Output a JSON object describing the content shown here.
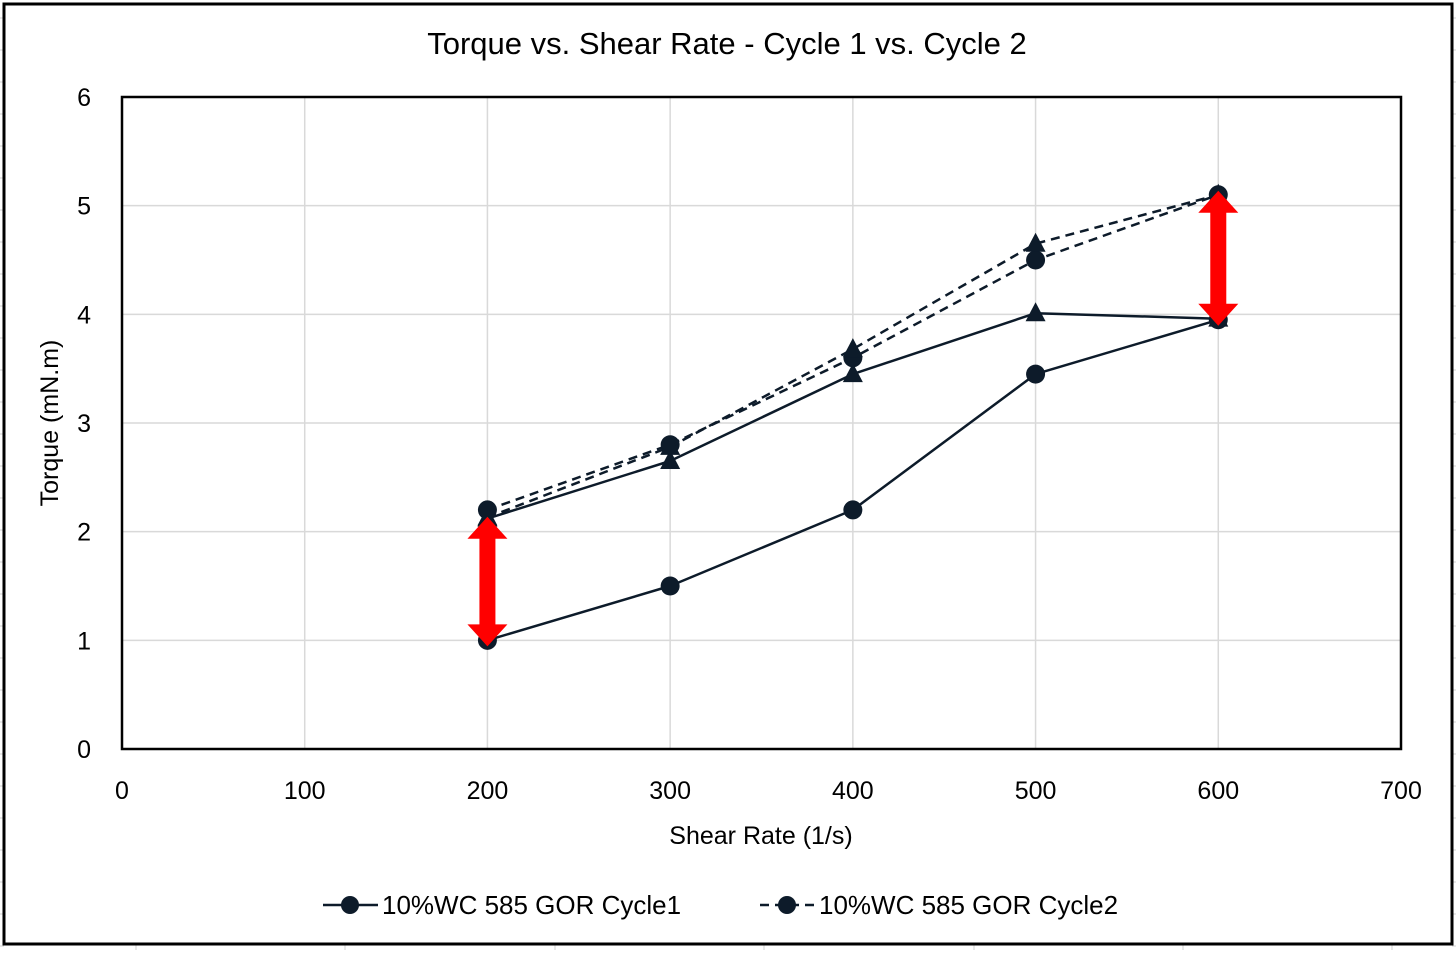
{
  "chart_data": {
    "type": "line",
    "title": "Torque vs. Shear Rate - Cycle 1 vs. Cycle 2",
    "xlabel": "Shear Rate (1/s)",
    "ylabel": "Torque (mN.m)",
    "xlim": [
      0,
      700
    ],
    "ylim": [
      0,
      6
    ],
    "x_ticks": [
      "0",
      "100",
      "200",
      "300",
      "400",
      "500",
      "600",
      "700"
    ],
    "y_ticks": [
      "0",
      "1",
      "2",
      "3",
      "4",
      "5",
      "6"
    ],
    "grid": true,
    "legend_position": "bottom",
    "legend": [
      {
        "label": "10%WC 585 GOR Cycle1",
        "line": "solid",
        "marker": "circle"
      },
      {
        "label": "10%WC 585 GOR Cycle2",
        "line": "dashed",
        "marker": "circle"
      }
    ],
    "series": [
      {
        "line": "solid",
        "marker": "circle",
        "x": [
          200,
          300,
          400,
          500,
          600
        ],
        "y": [
          1.0,
          1.5,
          2.2,
          3.45,
          3.95
        ]
      },
      {
        "line": "solid",
        "marker": "triangle",
        "x": [
          200,
          300,
          400,
          500,
          600
        ],
        "y": [
          2.12,
          2.65,
          3.45,
          4.01,
          3.96
        ]
      },
      {
        "line": "dashed",
        "marker": "circle",
        "x": [
          200,
          300,
          400,
          500,
          600
        ],
        "y": [
          2.2,
          2.8,
          3.6,
          4.5,
          5.1
        ]
      },
      {
        "line": "dashed",
        "marker": "triangle",
        "x": [
          200,
          300,
          400,
          500,
          600
        ],
        "y": [
          2.13,
          2.78,
          3.68,
          4.65,
          5.1
        ]
      }
    ],
    "annotations": [
      {
        "type": "double-arrow",
        "x": 200,
        "y_from": 1.0,
        "y_to": 2.1
      },
      {
        "type": "double-arrow",
        "x": 600,
        "y_from": 3.95,
        "y_to": 5.1
      }
    ],
    "colors": {
      "series": "#0d1b2a",
      "arrow": "#ff0000",
      "grid": "#d9d9d9",
      "frame": "#000000"
    }
  }
}
